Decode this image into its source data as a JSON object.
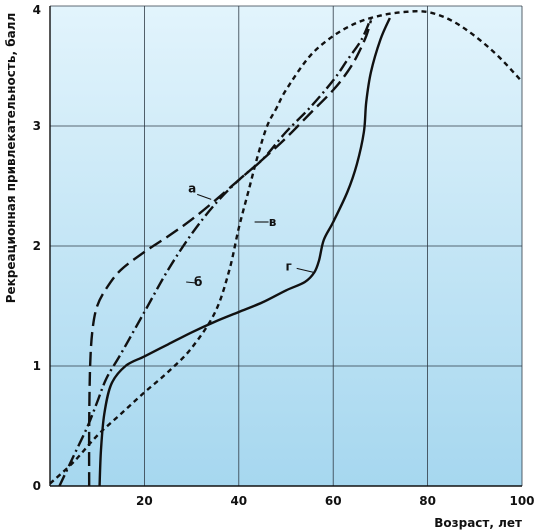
{
  "chart_data": {
    "type": "line",
    "xlabel": "Возраст, лет",
    "ylabel": "Рекреационная привлекательность, балл",
    "xlim": [
      0,
      100
    ],
    "ylim": [
      0,
      4
    ],
    "x_ticks": [
      "20",
      "40",
      "60",
      "80",
      "100"
    ],
    "y_ticks": [
      "0",
      "1",
      "2",
      "3",
      "4"
    ],
    "grid": true,
    "colors": {
      "background_top": "#e2f4fc",
      "background_bottom": "#a6d7ef",
      "grid": "#2f3b46",
      "line": "#111111"
    },
    "series": [
      {
        "name": "а",
        "dash": "long-dash",
        "points": [
          [
            8.3,
            0
          ],
          [
            8.3,
            0.5
          ],
          [
            8.5,
            1.0
          ],
          [
            9,
            1.3
          ],
          [
            10,
            1.5
          ],
          [
            12,
            1.65
          ],
          [
            15,
            1.8
          ],
          [
            20,
            1.95
          ],
          [
            25,
            2.08
          ],
          [
            30,
            2.22
          ],
          [
            35,
            2.38
          ],
          [
            40,
            2.55
          ],
          [
            45,
            2.72
          ],
          [
            50,
            2.9
          ],
          [
            55,
            3.1
          ],
          [
            60,
            3.3
          ],
          [
            63,
            3.45
          ],
          [
            65,
            3.58
          ],
          [
            67,
            3.75
          ],
          [
            68,
            3.88
          ]
        ],
        "label_at": [
          35,
          2.38
        ]
      },
      {
        "name": "б",
        "dash": "dash-dot",
        "points": [
          [
            2,
            0
          ],
          [
            5,
            0.25
          ],
          [
            8,
            0.5
          ],
          [
            10,
            0.7
          ],
          [
            12,
            0.9
          ],
          [
            15,
            1.1
          ],
          [
            20,
            1.45
          ],
          [
            25,
            1.8
          ],
          [
            30,
            2.1
          ],
          [
            35,
            2.35
          ],
          [
            40,
            2.55
          ],
          [
            45,
            2.72
          ],
          [
            50,
            2.95
          ],
          [
            55,
            3.15
          ],
          [
            60,
            3.38
          ],
          [
            63,
            3.55
          ],
          [
            66,
            3.72
          ],
          [
            68,
            3.9
          ]
        ],
        "label_at": [
          28,
          1.7
        ]
      },
      {
        "name": "в",
        "dash": "short-dash",
        "points": [
          [
            0,
            0.02
          ],
          [
            5,
            0.2
          ],
          [
            10,
            0.42
          ],
          [
            15,
            0.6
          ],
          [
            20,
            0.78
          ],
          [
            25,
            0.95
          ],
          [
            30,
            1.15
          ],
          [
            35,
            1.45
          ],
          [
            38,
            1.8
          ],
          [
            40,
            2.15
          ],
          [
            42,
            2.45
          ],
          [
            44,
            2.75
          ],
          [
            46,
            3.0
          ],
          [
            48,
            3.15
          ],
          [
            50,
            3.3
          ],
          [
            55,
            3.58
          ],
          [
            60,
            3.75
          ],
          [
            65,
            3.86
          ],
          [
            70,
            3.92
          ],
          [
            75,
            3.95
          ],
          [
            80,
            3.95
          ],
          [
            85,
            3.88
          ],
          [
            90,
            3.75
          ],
          [
            95,
            3.58
          ],
          [
            100,
            3.37
          ]
        ],
        "label_at": [
          42.5,
          2.2
        ]
      },
      {
        "name": "г",
        "dash": "solid",
        "points": [
          [
            10.5,
            0
          ],
          [
            10.8,
            0.3
          ],
          [
            11.5,
            0.6
          ],
          [
            13,
            0.85
          ],
          [
            16,
            1.0
          ],
          [
            20,
            1.08
          ],
          [
            25,
            1.18
          ],
          [
            30,
            1.28
          ],
          [
            35,
            1.37
          ],
          [
            40,
            1.45
          ],
          [
            45,
            1.53
          ],
          [
            50,
            1.63
          ],
          [
            54,
            1.7
          ],
          [
            56,
            1.78
          ],
          [
            57,
            1.88
          ],
          [
            58,
            2.05
          ],
          [
            60,
            2.2
          ],
          [
            63,
            2.45
          ],
          [
            65,
            2.68
          ],
          [
            66.5,
            2.95
          ],
          [
            67,
            3.2
          ],
          [
            68,
            3.45
          ],
          [
            70,
            3.72
          ],
          [
            72,
            3.9
          ]
        ],
        "label_at": [
          56.5,
          1.78
        ]
      }
    ]
  }
}
